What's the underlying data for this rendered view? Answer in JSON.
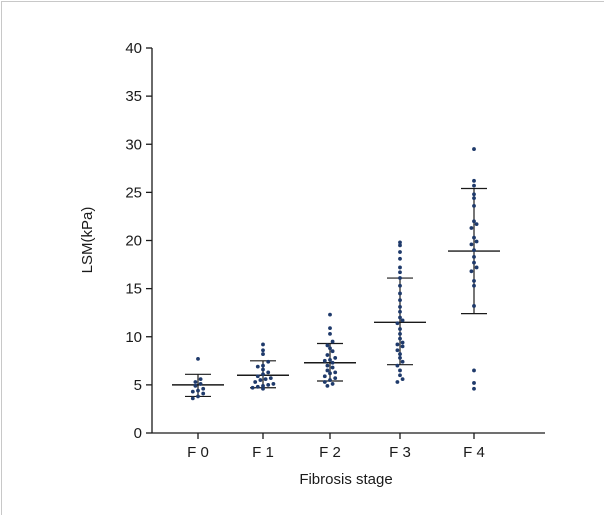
{
  "chart_data": {
    "type": "scatter",
    "title": "",
    "xlabel": "Fibrosis stage",
    "ylabel": "LSM(kPa)",
    "ylim": [
      0,
      40
    ],
    "yticks": [
      0,
      5,
      10,
      15,
      20,
      25,
      30,
      35,
      40
    ],
    "categories": [
      "F 0",
      "F 1",
      "F 2",
      "F 3",
      "F 4"
    ],
    "grid": false,
    "legend": "none",
    "point_color": "#1f3a6b",
    "summary": [
      {
        "category": "F 0",
        "mean": 5.0,
        "sd_low": 3.8,
        "sd_high": 6.1
      },
      {
        "category": "F 1",
        "mean": 6.0,
        "sd_low": 4.7,
        "sd_high": 7.5
      },
      {
        "category": "F 2",
        "mean": 7.3,
        "sd_low": 5.4,
        "sd_high": 9.3
      },
      {
        "category": "F 3",
        "mean": 11.5,
        "sd_low": 7.1,
        "sd_high": 16.1
      },
      {
        "category": "F 4",
        "mean": 18.9,
        "sd_low": 12.4,
        "sd_high": 25.4
      }
    ],
    "points": [
      {
        "category": "F 0",
        "values": [
          7.7,
          5.3,
          5.1,
          4.9,
          4.6,
          4.3,
          4.1,
          3.8,
          3.6,
          5.6,
          4.4
        ]
      },
      {
        "category": "F 1",
        "values": [
          9.2,
          8.6,
          8.2,
          7.4,
          7.0,
          6.6,
          6.3,
          6.1,
          5.9,
          5.7,
          5.5,
          5.3,
          5.1,
          5.0,
          4.9,
          4.8,
          4.7,
          4.6,
          6.9,
          5.6
        ]
      },
      {
        "category": "F 2",
        "values": [
          12.3,
          10.9,
          10.3,
          9.5,
          9.1,
          8.8,
          8.5,
          8.1,
          7.8,
          7.5,
          7.3,
          7.0,
          6.8,
          6.5,
          6.2,
          5.9,
          5.7,
          5.5,
          5.3,
          5.1,
          4.9,
          7.6,
          6.3
        ]
      },
      {
        "category": "F 3",
        "values": [
          19.8,
          19.5,
          18.8,
          18.1,
          17.2,
          16.7,
          16.1,
          15.3,
          14.5,
          13.8,
          13.1,
          12.6,
          12.0,
          11.4,
          10.8,
          10.3,
          9.8,
          9.4,
          9.0,
          8.6,
          8.2,
          7.8,
          7.4,
          7.0,
          6.5,
          6.0,
          5.6,
          5.3,
          11.7,
          9.2
        ]
      },
      {
        "category": "F 4",
        "values": [
          29.5,
          26.2,
          25.7,
          24.8,
          24.4,
          23.6,
          22.0,
          21.7,
          21.3,
          20.3,
          19.9,
          19.6,
          19.0,
          18.3,
          17.7,
          17.2,
          16.8,
          15.8,
          15.3,
          13.2,
          6.5,
          5.2,
          4.6
        ]
      }
    ]
  }
}
